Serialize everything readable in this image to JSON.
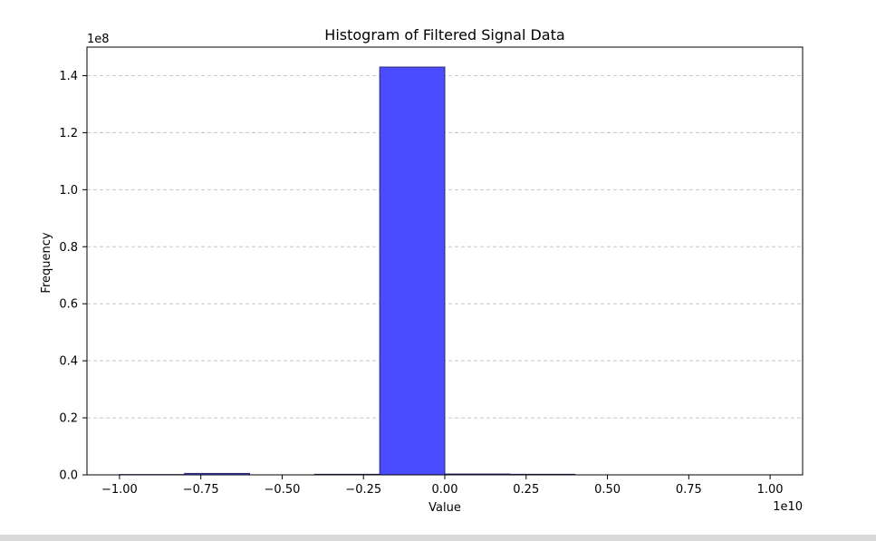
{
  "chart_data": {
    "type": "histogram",
    "title": "Histogram of Filtered Signal Data",
    "xlabel": "Value",
    "ylabel": "Frequency",
    "x_offset_label": "1e10",
    "y_offset_label": "1e8",
    "xlim": [
      -1.1,
      1.1
    ],
    "ylim": [
      0,
      1.5
    ],
    "bins": [
      {
        "x0": -1.0,
        "x1": -0.8,
        "count": 0.001
      },
      {
        "x0": -0.8,
        "x1": -0.6,
        "count": 0.005
      },
      {
        "x0": -0.6,
        "x1": -0.4,
        "count": 0.0
      },
      {
        "x0": -0.4,
        "x1": -0.2,
        "count": 0.002
      },
      {
        "x0": -0.2,
        "x1": 0.0,
        "count": 1.43
      },
      {
        "x0": 0.0,
        "x1": 0.2,
        "count": 0.003
      },
      {
        "x0": 0.2,
        "x1": 0.4,
        "count": 0.002
      },
      {
        "x0": 0.4,
        "x1": 0.6,
        "count": 0.0
      },
      {
        "x0": 0.6,
        "x1": 0.8,
        "count": 0.0
      },
      {
        "x0": 0.8,
        "x1": 1.0,
        "count": 0.0
      }
    ],
    "xticks": [
      {
        "value": -1.0,
        "label": "−1.00"
      },
      {
        "value": -0.75,
        "label": "−0.75"
      },
      {
        "value": -0.5,
        "label": "−0.50"
      },
      {
        "value": -0.25,
        "label": "−0.25"
      },
      {
        "value": 0.0,
        "label": "0.00"
      },
      {
        "value": 0.25,
        "label": "0.25"
      },
      {
        "value": 0.5,
        "label": "0.50"
      },
      {
        "value": 0.75,
        "label": "0.75"
      },
      {
        "value": 1.0,
        "label": "1.00"
      }
    ],
    "yticks": [
      {
        "value": 0.0,
        "label": "0.0"
      },
      {
        "value": 0.2,
        "label": "0.2"
      },
      {
        "value": 0.4,
        "label": "0.4"
      },
      {
        "value": 0.6,
        "label": "0.6"
      },
      {
        "value": 0.8,
        "label": "0.8"
      },
      {
        "value": 1.0,
        "label": "1.0"
      },
      {
        "value": 1.2,
        "label": "1.2"
      },
      {
        "value": 1.4,
        "label": "1.4"
      }
    ],
    "grid": "y-dashed",
    "colors": {
      "bar_fill": "#4b4bff",
      "bar_edge": "#2b2b6b",
      "grid": "#c8c8c8"
    }
  }
}
